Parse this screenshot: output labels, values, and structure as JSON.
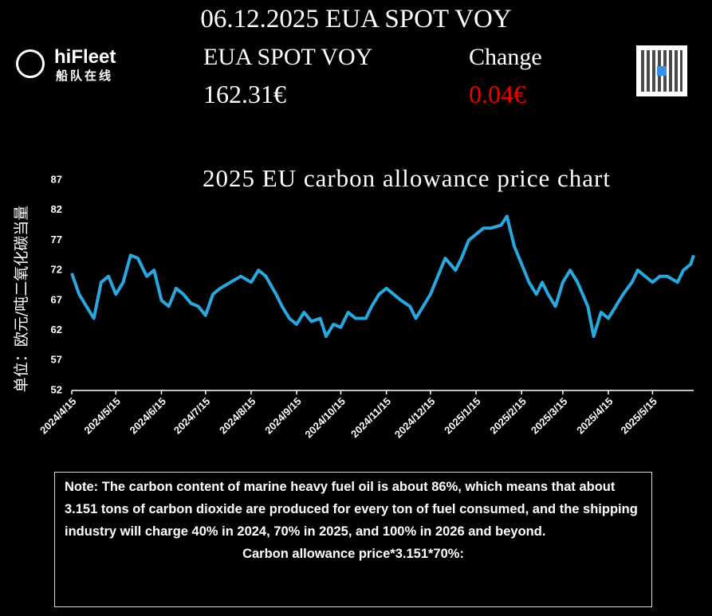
{
  "header": {
    "title": "06.12.2025 EUA SPOT VOY",
    "product_label": "EUA SPOT VOY",
    "change_label": "Change",
    "price": "162.31€",
    "change": "0.04€",
    "logo_text": "hiFleet",
    "logo_subtext": "船队在线"
  },
  "chart_data": {
    "type": "line",
    "title": "2025 EU carbon allowance price chart",
    "y_label": "单位：欧元/吨二氧化碳当量",
    "color": "#29a8e0",
    "x": [
      "2024/4/15",
      "2024/4/20",
      "2024/4/25",
      "2024/4/30",
      "2024/5/5",
      "2024/5/10",
      "2024/5/15",
      "2024/5/20",
      "2024/5/25",
      "2024/5/30",
      "2024/6/5",
      "2024/6/10",
      "2024/6/15",
      "2024/6/20",
      "2024/6/25",
      "2024/6/30",
      "2024/7/5",
      "2024/7/10",
      "2024/7/15",
      "2024/7/20",
      "2024/7/25",
      "2024/8/1",
      "2024/8/8",
      "2024/8/15",
      "2024/8/20",
      "2024/8/25",
      "2024/9/1",
      "2024/9/5",
      "2024/9/10",
      "2024/9/15",
      "2024/9/20",
      "2024/9/25",
      "2024/10/1",
      "2024/10/5",
      "2024/10/10",
      "2024/10/15",
      "2024/10/20",
      "2024/10/25",
      "2024/11/1",
      "2024/11/5",
      "2024/11/10",
      "2024/11/15",
      "2024/11/20",
      "2024/11/25",
      "2024/12/1",
      "2024/12/5",
      "2024/12/10",
      "2024/12/15",
      "2024/12/20",
      "2024/12/25",
      "2025/1/1",
      "2025/1/5",
      "2025/1/10",
      "2025/1/15",
      "2025/1/20",
      "2025/1/25",
      "2025/2/1",
      "2025/2/5",
      "2025/2/10",
      "2025/2/15",
      "2025/2/20",
      "2025/2/25",
      "2025/3/1",
      "2025/3/5",
      "2025/3/10",
      "2025/3/15",
      "2025/3/20",
      "2025/3/25",
      "2025/4/1",
      "2025/4/5",
      "2025/4/10",
      "2025/4/15",
      "2025/4/20",
      "2025/4/25",
      "2025/5/1",
      "2025/5/5",
      "2025/5/10",
      "2025/5/15",
      "2025/5/20",
      "2025/5/25",
      "2025/6/1",
      "2025/6/5",
      "2025/6/10",
      "2025/6/12"
    ],
    "values": [
      71.5,
      68,
      66,
      64,
      70,
      71,
      68,
      70,
      74.5,
      74,
      71,
      72,
      67,
      66,
      69,
      68,
      66.5,
      66,
      64.5,
      68,
      69,
      70,
      71,
      70,
      72,
      71,
      68,
      66,
      64,
      63,
      65,
      63.5,
      64,
      61,
      63,
      62.5,
      65,
      64,
      64,
      66,
      68,
      69,
      68,
      67,
      66,
      64,
      66,
      68,
      71,
      74,
      72,
      74,
      77,
      78,
      79,
      79,
      79.5,
      81,
      76,
      73,
      70,
      68,
      70,
      68,
      66,
      70,
      72,
      70,
      66,
      61,
      65,
      64,
      66,
      68,
      70,
      72,
      71,
      70,
      71,
      71,
      70,
      72,
      73,
      74.5
    ],
    "xlim": [
      "2024/4/15",
      "2025/6/12"
    ],
    "xticks": [
      "2024/4/15",
      "2024/5/15",
      "2024/6/15",
      "2024/7/15",
      "2024/8/15",
      "2024/9/15",
      "2024/10/15",
      "2024/11/15",
      "2024/12/15",
      "2025/1/15",
      "2025/2/15",
      "2025/3/15",
      "2025/4/15",
      "2025/5/15"
    ],
    "ylim": [
      52,
      87
    ],
    "yticks": [
      52,
      57,
      62,
      67,
      72,
      77,
      82,
      87
    ]
  },
  "note": {
    "text": "Note: The carbon content of marine heavy fuel oil is about 86%, which means that about 3.151 tons of carbon dioxide are produced for every ton of fuel consumed, and the shipping industry will charge 40% in 2024, 70% in 2025, and 100% in 2026 and beyond.",
    "formula": "Carbon allowance price*3.151*70%:"
  }
}
